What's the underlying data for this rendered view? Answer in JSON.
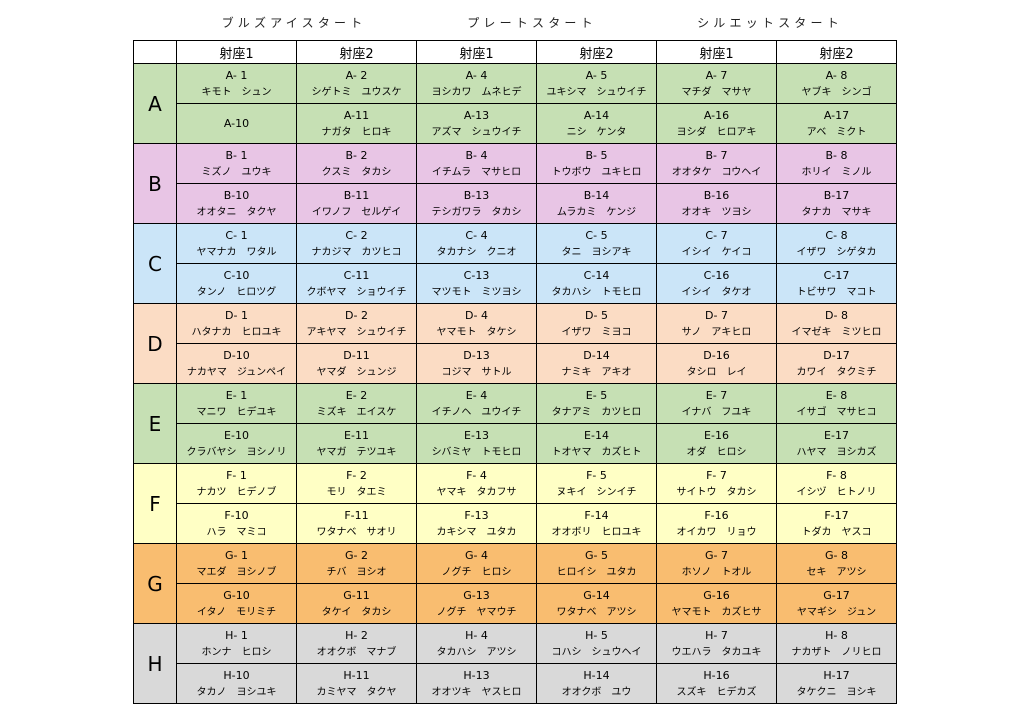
{
  "group_titles": [
    "ブルズアイスタート",
    "プレートスタート",
    "シルエットスタート"
  ],
  "column_headers": [
    "射座1",
    "射座2",
    "射座1",
    "射座2",
    "射座1",
    "射座2"
  ],
  "rows": [
    {
      "label": "A",
      "color": "#c6e0b4",
      "sub_rows": [
        {
          "cells": [
            {
              "id": "A- 1",
              "name": "キモト　シュン"
            },
            {
              "id": "A- 2",
              "name": "シゲトミ　ユウスケ"
            },
            {
              "id": "A- 4",
              "name": "ヨシカワ　ムネヒデ"
            },
            {
              "id": "A- 5",
              "name": "ユキシマ　シュウイチ"
            },
            {
              "id": "A- 7",
              "name": "マチダ　マサヤ"
            },
            {
              "id": "A- 8",
              "name": "ヤブキ　シンゴ"
            }
          ]
        },
        {
          "cells": [
            {
              "id": "A-10",
              "name": ""
            },
            {
              "id": "A-11",
              "name": "ナガタ　ヒロキ"
            },
            {
              "id": "A-13",
              "name": "アズマ　シュウイチ"
            },
            {
              "id": "A-14",
              "name": "ニシ　ケンタ"
            },
            {
              "id": "A-16",
              "name": "ヨシダ　ヒロアキ"
            },
            {
              "id": "A-17",
              "name": "アベ　ミクト"
            }
          ]
        }
      ]
    },
    {
      "label": "B",
      "color": "#e8c5e5",
      "sub_rows": [
        {
          "cells": [
            {
              "id": "B- 1",
              "name": "ミズノ　ユウキ"
            },
            {
              "id": "B- 2",
              "name": "クスミ　タカシ"
            },
            {
              "id": "B- 4",
              "name": "イチムラ　マサヒロ"
            },
            {
              "id": "B- 5",
              "name": "トウボウ　ユキヒロ"
            },
            {
              "id": "B- 7",
              "name": "オオタケ　コウヘイ"
            },
            {
              "id": "B- 8",
              "name": "ホリイ　ミノル"
            }
          ]
        },
        {
          "cells": [
            {
              "id": "B-10",
              "name": "オオタニ　タクヤ"
            },
            {
              "id": "B-11",
              "name": "イワノフ　セルゲイ"
            },
            {
              "id": "B-13",
              "name": "テシガワラ　タカシ"
            },
            {
              "id": "B-14",
              "name": "ムラカミ　ケンジ"
            },
            {
              "id": "B-16",
              "name": "オオキ　ツヨシ"
            },
            {
              "id": "B-17",
              "name": "タナカ　マサキ"
            }
          ]
        }
      ]
    },
    {
      "label": "C",
      "color": "#cbe5f8",
      "sub_rows": [
        {
          "cells": [
            {
              "id": "C- 1",
              "name": "ヤマナカ　ワタル"
            },
            {
              "id": "C- 2",
              "name": "ナカジマ　カツヒコ"
            },
            {
              "id": "C- 4",
              "name": "タカナシ　クニオ"
            },
            {
              "id": "C- 5",
              "name": "タニ　ヨシアキ"
            },
            {
              "id": "C- 7",
              "name": "イシイ　ケイコ"
            },
            {
              "id": "C- 8",
              "name": "イザワ　シゲタカ"
            }
          ]
        },
        {
          "cells": [
            {
              "id": "C-10",
              "name": "タンノ　ヒロツグ"
            },
            {
              "id": "C-11",
              "name": "クボヤマ　ショウイチ"
            },
            {
              "id": "C-13",
              "name": "マツモト　ミツヨシ"
            },
            {
              "id": "C-14",
              "name": "タカハシ　トモヒロ"
            },
            {
              "id": "C-16",
              "name": "イシイ　タケオ"
            },
            {
              "id": "C-17",
              "name": "トビサワ　マコト"
            }
          ]
        }
      ]
    },
    {
      "label": "D",
      "color": "#fbdcc4",
      "sub_rows": [
        {
          "cells": [
            {
              "id": "D- 1",
              "name": "ハタナカ　ヒロユキ"
            },
            {
              "id": "D- 2",
              "name": "アキヤマ　シュウイチ"
            },
            {
              "id": "D- 4",
              "name": "ヤマモト　タケシ"
            },
            {
              "id": "D- 5",
              "name": "イザワ　ミヨコ"
            },
            {
              "id": "D- 7",
              "name": "サノ　アキヒロ"
            },
            {
              "id": "D- 8",
              "name": "イマゼキ　ミツヒロ"
            }
          ]
        },
        {
          "cells": [
            {
              "id": "D-10",
              "name": "ナカヤマ　ジュンペイ"
            },
            {
              "id": "D-11",
              "name": "ヤマダ　シュンジ"
            },
            {
              "id": "D-13",
              "name": "コジマ　サトル"
            },
            {
              "id": "D-14",
              "name": "ナミキ　アキオ"
            },
            {
              "id": "D-16",
              "name": "タシロ　レイ"
            },
            {
              "id": "D-17",
              "name": "カワイ　タクミチ"
            }
          ]
        }
      ]
    },
    {
      "label": "E",
      "color": "#c6e0b4",
      "sub_rows": [
        {
          "cells": [
            {
              "id": "E- 1",
              "name": "マニワ　ヒデユキ"
            },
            {
              "id": "E- 2",
              "name": "ミズキ　エイスケ"
            },
            {
              "id": "E- 4",
              "name": "イチノヘ　ユウイチ"
            },
            {
              "id": "E- 5",
              "name": "タナアミ　カツヒロ"
            },
            {
              "id": "E- 7",
              "name": "イナバ　フユキ"
            },
            {
              "id": "E- 8",
              "name": "イサゴ　マサヒコ"
            }
          ]
        },
        {
          "cells": [
            {
              "id": "E-10",
              "name": "クラバヤシ　ヨシノリ"
            },
            {
              "id": "E-11",
              "name": "ヤマガ　テツユキ"
            },
            {
              "id": "E-13",
              "name": "シバミヤ　トモヒロ"
            },
            {
              "id": "E-14",
              "name": "トオヤマ　カズヒト"
            },
            {
              "id": "E-16",
              "name": "オダ　ヒロシ"
            },
            {
              "id": "E-17",
              "name": "ハヤマ　ヨシカズ"
            }
          ]
        }
      ]
    },
    {
      "label": "F",
      "color": "#ffffc5",
      "sub_rows": [
        {
          "cells": [
            {
              "id": "F- 1",
              "name": "ナカツ　ヒデノブ"
            },
            {
              "id": "F- 2",
              "name": "モリ　タエミ"
            },
            {
              "id": "F- 4",
              "name": "ヤマキ　タカフサ"
            },
            {
              "id": "F- 5",
              "name": "ヌキイ　シンイチ"
            },
            {
              "id": "F- 7",
              "name": "サイトウ　タカシ"
            },
            {
              "id": "F- 8",
              "name": "イシヅ　ヒトノリ"
            }
          ]
        },
        {
          "cells": [
            {
              "id": "F-10",
              "name": "ハラ　マミコ"
            },
            {
              "id": "F-11",
              "name": "ワタナベ　サオリ"
            },
            {
              "id": "F-13",
              "name": "カキシマ　ユタカ"
            },
            {
              "id": "F-14",
              "name": "オオボリ　ヒロユキ"
            },
            {
              "id": "F-16",
              "name": "オイカワ　リョウ"
            },
            {
              "id": "F-17",
              "name": "トダカ　ヤスコ"
            }
          ]
        }
      ]
    },
    {
      "label": "G",
      "color": "#f9bd70",
      "sub_rows": [
        {
          "cells": [
            {
              "id": "G- 1",
              "name": "マエダ　ヨシノブ"
            },
            {
              "id": "G- 2",
              "name": "チバ　ヨシオ"
            },
            {
              "id": "G- 4",
              "name": "ノグチ　ヒロシ"
            },
            {
              "id": "G- 5",
              "name": "ヒロイシ　ユタカ"
            },
            {
              "id": "G- 7",
              "name": "ホソノ　トオル"
            },
            {
              "id": "G- 8",
              "name": "セキ　アツシ"
            }
          ]
        },
        {
          "cells": [
            {
              "id": "G-10",
              "name": "イタノ　モリミチ"
            },
            {
              "id": "G-11",
              "name": "タケイ　タカシ"
            },
            {
              "id": "G-13",
              "name": "ノグチ　ヤマウチ"
            },
            {
              "id": "G-14",
              "name": "ワタナベ　アツシ"
            },
            {
              "id": "G-16",
              "name": "ヤマモト　カズヒサ"
            },
            {
              "id": "G-17",
              "name": "ヤマギシ　ジュン"
            }
          ]
        }
      ]
    },
    {
      "label": "H",
      "color": "#d9d9d9",
      "sub_rows": [
        {
          "cells": [
            {
              "id": "H- 1",
              "name": "ホンナ　ヒロシ"
            },
            {
              "id": "H- 2",
              "name": "オオクボ　マナブ"
            },
            {
              "id": "H- 4",
              "name": "タカハシ　アツシ"
            },
            {
              "id": "H- 5",
              "name": "コハシ　シュウヘイ"
            },
            {
              "id": "H- 7",
              "name": "ウエハラ　タカユキ"
            },
            {
              "id": "H- 8",
              "name": "ナカザト　ノリヒロ"
            }
          ]
        },
        {
          "cells": [
            {
              "id": "H-10",
              "name": "タカノ　ヨシユキ"
            },
            {
              "id": "H-11",
              "name": "カミヤマ　タクヤ"
            },
            {
              "id": "H-13",
              "name": "オオツキ　ヤスヒロ"
            },
            {
              "id": "H-14",
              "name": "オオクボ　ユウ"
            },
            {
              "id": "H-16",
              "name": "スズキ　ヒデカズ"
            },
            {
              "id": "H-17",
              "name": "タケクニ　ヨシキ"
            }
          ]
        }
      ]
    }
  ]
}
